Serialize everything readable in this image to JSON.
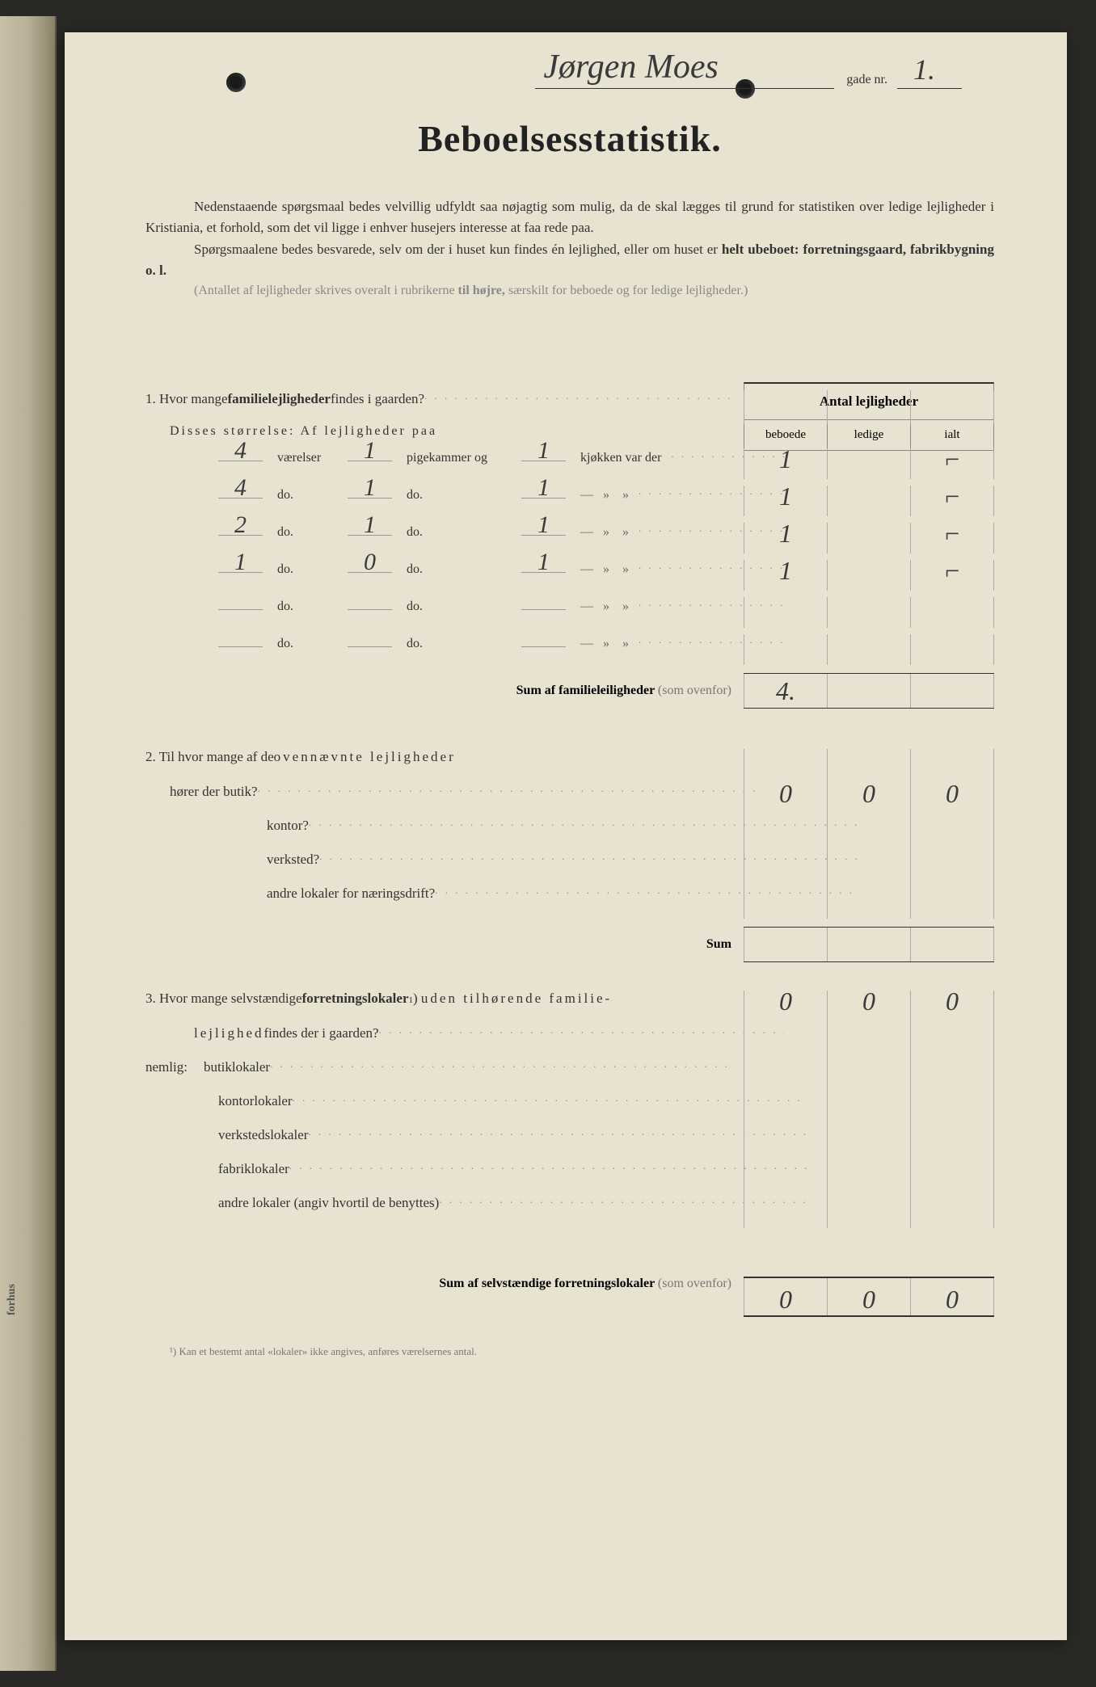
{
  "header": {
    "street_name": "Jørgen Moes",
    "gade_label": "gade nr.",
    "street_number": "1."
  },
  "title": "Beboelsesstatistik.",
  "intro": {
    "para1": "Nedenstaaende spørgsmaal bedes velvillig udfyldt saa nøjagtig som mulig, da de skal lægges til grund for statistiken over ledige lejligheder i Kristiania, et forhold, som det vil ligge i enhver husejers interesse at faa rede paa.",
    "para2_a": "Spørgsmaalene bedes besvarede, selv om der i huset kun findes én lejlighed, eller om huset er ",
    "para2_b": "helt ubeboet: forretningsgaard, fabrikbygning o. l.",
    "para3_a": "(Antallet af lejligheder skrives overalt i rubrikerne ",
    "para3_b": "til højre,",
    "para3_c": " særskilt for beboede og for ledige lejligheder.)"
  },
  "table_header": {
    "main": "Antal lejligheder",
    "col1": "beboede",
    "col2": "ledige",
    "col3": "ialt"
  },
  "q1": {
    "text_a": "1.  Hvor mange ",
    "text_b": "familielejligheder",
    "text_c": " findes i gaarden?",
    "sub": "Disses størrelse:  Af lejligheder paa",
    "row_labels": {
      "vaerelser": "værelser",
      "pigekammer": "pigekammer og",
      "kjokken": "kjøkken var der",
      "do": "do."
    },
    "rows": [
      {
        "v": "4",
        "p": "1",
        "k": "1",
        "beboede": "1",
        "ledige": "",
        "ialt": "⌐"
      },
      {
        "v": "4",
        "p": "1",
        "k": "1",
        "beboede": "1",
        "ledige": "",
        "ialt": "⌐"
      },
      {
        "v": "2",
        "p": "1",
        "k": "1",
        "beboede": "1",
        "ledige": "",
        "ialt": "⌐"
      },
      {
        "v": "1",
        "p": "0",
        "k": "1",
        "beboede": "1",
        "ledige": "",
        "ialt": "⌐"
      },
      {
        "v": "",
        "p": "",
        "k": "",
        "beboede": "",
        "ledige": "",
        "ialt": ""
      },
      {
        "v": "",
        "p": "",
        "k": "",
        "beboede": "",
        "ledige": "",
        "ialt": ""
      }
    ],
    "sum_label": "Sum af familieleiligheder",
    "sum_paren": "(som ovenfor)",
    "sum_value": "4."
  },
  "q2": {
    "text_a": "2.  Til hvor mange af de ",
    "text_b": "ovennævnte lejligheder",
    "items": [
      {
        "label": "hører der butik?",
        "b": "0",
        "l": "0",
        "i": "0"
      },
      {
        "label": "kontor?",
        "b": "",
        "l": "",
        "i": ""
      },
      {
        "label": "verksted?",
        "b": "",
        "l": "",
        "i": ""
      },
      {
        "label": "andre lokaler for næringsdrift?",
        "b": "",
        "l": "",
        "i": ""
      }
    ],
    "sum_label": "Sum"
  },
  "q3": {
    "text_a": "3.  Hvor mange selvstændige ",
    "text_b": "forretningslokaler",
    "text_c": ") uden tilhørende familielejlighed findes der i gaarden?",
    "main_values": {
      "b": "0",
      "l": "0",
      "i": "0"
    },
    "nemlig": "nemlig:",
    "items": [
      {
        "label": "butiklokaler"
      },
      {
        "label": "kontorlokaler"
      },
      {
        "label": "verkstedslokaler"
      },
      {
        "label": "fabriklokaler"
      },
      {
        "label": "andre lokaler (angiv hvortil de benyttes)"
      }
    ],
    "sum_label": "Sum af selvstændige forretningslokaler",
    "sum_paren": "(som ovenfor)",
    "sum_values": {
      "b": "0",
      "l": "0",
      "i": "0"
    }
  },
  "footnote": "¹) Kan et bestemt antal «lokaler» ikke angives, anføres værelsernes antal.",
  "margin": {
    "forhus": "forhus"
  }
}
